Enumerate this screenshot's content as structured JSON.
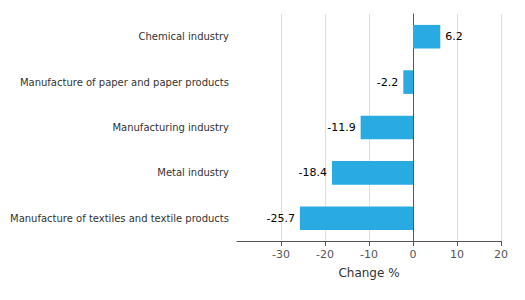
{
  "chart_data": {
    "type": "bar",
    "orientation": "horizontal",
    "categories": [
      "Manufacture of textiles and textile products",
      "Metal industry",
      "Manufacturing industry",
      "Manufacture of paper and paper products",
      "Chemical industry"
    ],
    "values": [
      -25.7,
      -18.4,
      -11.9,
      -2.2,
      6.2
    ],
    "color": "#29ABE2",
    "xlabel": "Change %",
    "xlim": [
      -40,
      20
    ],
    "xticks": [
      -30,
      -20,
      -10,
      0,
      10,
      20
    ],
    "grid": true,
    "data_labels": true
  }
}
